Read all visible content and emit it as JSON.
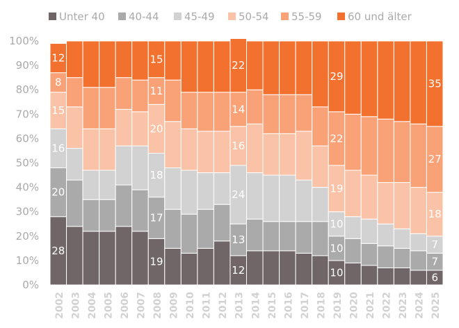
{
  "chart_data": {
    "type": "bar",
    "stacked": true,
    "normalized_100": true,
    "title": "",
    "xlabel": "",
    "ylabel": "",
    "ylim": [
      0,
      100
    ],
    "yticks": [
      "0%",
      "10%",
      "20%",
      "30%",
      "40%",
      "50%",
      "60%",
      "70%",
      "80%",
      "90%",
      "100%"
    ],
    "grid": false,
    "legend_position": "top",
    "categories": [
      "2002",
      "2003",
      "2004",
      "2005",
      "2006",
      "2007",
      "2008",
      "2009",
      "2010",
      "2011",
      "2012",
      "2013",
      "2014",
      "2015",
      "2016",
      "2017",
      "2018",
      "2019",
      "2020",
      "2021",
      "2022",
      "2023",
      "2024",
      "2025"
    ],
    "series": [
      {
        "name": "Unter 40",
        "color": "#706667",
        "values": [
          28,
          24,
          22,
          22,
          24,
          22,
          19,
          15,
          13,
          15,
          18,
          12,
          14,
          14,
          14,
          13,
          12,
          10,
          9,
          8,
          7,
          7,
          6,
          6
        ]
      },
      {
        "name": "40-44",
        "color": "#aaaaaa",
        "values": [
          20,
          19,
          13,
          13,
          17,
          17,
          17,
          16,
          16,
          16,
          15,
          13,
          13,
          12,
          12,
          13,
          14,
          10,
          10,
          9,
          9,
          8,
          8,
          7
        ]
      },
      {
        "name": "45-49",
        "color": "#d2d2d2",
        "values": [
          16,
          13,
          12,
          12,
          16,
          18,
          18,
          17,
          18,
          15,
          13,
          24,
          19,
          19,
          19,
          17,
          14,
          10,
          9,
          10,
          9,
          8,
          7,
          7
        ]
      },
      {
        "name": "50-54",
        "color": "#fac2a6",
        "values": [
          15,
          17,
          17,
          17,
          15,
          14,
          20,
          19,
          17,
          17,
          17,
          16,
          20,
          17,
          17,
          20,
          17,
          19,
          19,
          18,
          17,
          19,
          19,
          18
        ]
      },
      {
        "name": "55-59",
        "color": "#f9a277",
        "values": [
          8,
          12,
          17,
          17,
          13,
          13,
          11,
          17,
          15,
          16,
          16,
          14,
          14,
          16,
          16,
          15,
          16,
          22,
          23,
          24,
          26,
          25,
          26,
          27
        ]
      },
      {
        "name": "60 und älter",
        "color": "#f2712e",
        "values": [
          12,
          15,
          19,
          19,
          15,
          16,
          15,
          16,
          21,
          21,
          21,
          22,
          20,
          22,
          22,
          22,
          27,
          29,
          30,
          31,
          32,
          33,
          34,
          35
        ]
      }
    ],
    "data_labels": [
      {
        "category": "2002",
        "series": "Unter 40",
        "text": "28"
      },
      {
        "category": "2002",
        "series": "40-44",
        "text": "20"
      },
      {
        "category": "2002",
        "series": "45-49",
        "text": "16"
      },
      {
        "category": "2002",
        "series": "50-54",
        "text": "15"
      },
      {
        "category": "2002",
        "series": "55-59",
        "text": "8"
      },
      {
        "category": "2002",
        "series": "60 und älter",
        "text": "12"
      },
      {
        "category": "2008",
        "series": "Unter 40",
        "text": "19"
      },
      {
        "category": "2008",
        "series": "40-44",
        "text": "17"
      },
      {
        "category": "2008",
        "series": "45-49",
        "text": "18"
      },
      {
        "category": "2008",
        "series": "50-54",
        "text": "20"
      },
      {
        "category": "2008",
        "series": "55-59",
        "text": "11"
      },
      {
        "category": "2008",
        "series": "60 und älter",
        "text": "15"
      },
      {
        "category": "2013",
        "series": "Unter 40",
        "text": "12"
      },
      {
        "category": "2013",
        "series": "40-44",
        "text": "13"
      },
      {
        "category": "2013",
        "series": "45-49",
        "text": "24"
      },
      {
        "category": "2013",
        "series": "50-54",
        "text": "16"
      },
      {
        "category": "2013",
        "series": "55-59",
        "text": "14"
      },
      {
        "category": "2013",
        "series": "60 und älter",
        "text": "22"
      },
      {
        "category": "2019",
        "series": "Unter 40",
        "text": "10"
      },
      {
        "category": "2019",
        "series": "40-44",
        "text": "10"
      },
      {
        "category": "2019",
        "series": "45-49",
        "text": "10"
      },
      {
        "category": "2019",
        "series": "50-54",
        "text": "19"
      },
      {
        "category": "2019",
        "series": "55-59",
        "text": "22"
      },
      {
        "category": "2019",
        "series": "60 und älter",
        "text": "29"
      },
      {
        "category": "2025",
        "series": "Unter 40",
        "text": "6"
      },
      {
        "category": "2025",
        "series": "40-44",
        "text": "7"
      },
      {
        "category": "2025",
        "series": "45-49",
        "text": "7"
      },
      {
        "category": "2025",
        "series": "50-54",
        "text": "18"
      },
      {
        "category": "2025",
        "series": "55-59",
        "text": "27"
      },
      {
        "category": "2025",
        "series": "60 und älter",
        "text": "35"
      }
    ]
  }
}
